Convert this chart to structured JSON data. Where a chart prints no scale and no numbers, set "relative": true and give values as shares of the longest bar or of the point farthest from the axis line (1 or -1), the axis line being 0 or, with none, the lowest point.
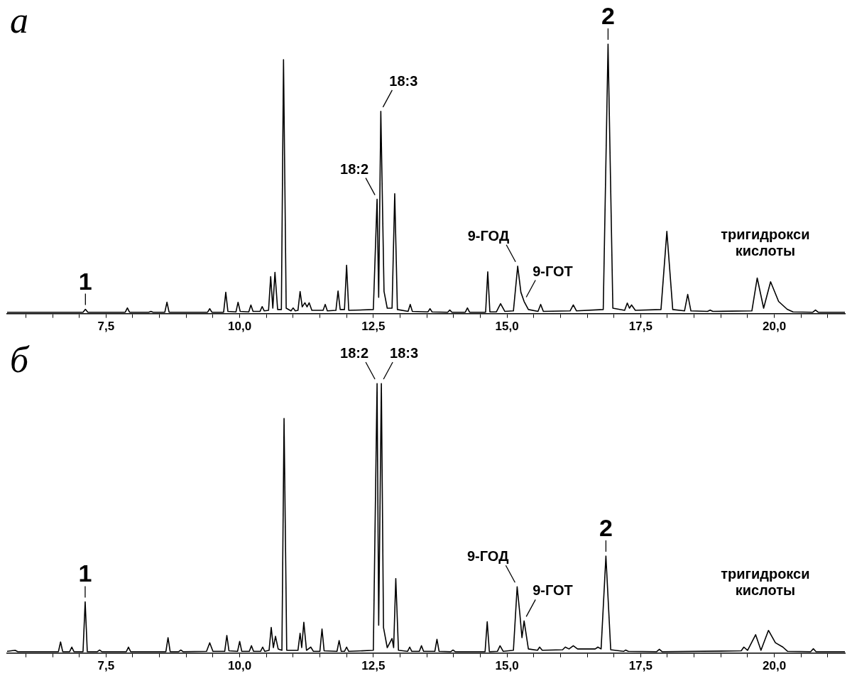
{
  "chart_data": [
    {
      "type": "line",
      "title": "а",
      "relative": true,
      "marker": "none",
      "tick_labels": "x",
      "xlim": [
        5.65,
        21.32
      ],
      "xticks": [
        {
          "value": 6,
          "label": null
        },
        {
          "value": 6.5,
          "label": null
        },
        {
          "value": 7,
          "label": null
        },
        {
          "value": 7.5,
          "label": "7,5"
        },
        {
          "value": 8,
          "label": null
        },
        {
          "value": 8.5,
          "label": null
        },
        {
          "value": 9,
          "label": null
        },
        {
          "value": 9.5,
          "label": null
        },
        {
          "value": 10,
          "label": "10,0"
        },
        {
          "value": 10.5,
          "label": null
        },
        {
          "value": 11,
          "label": null
        },
        {
          "value": 11.5,
          "label": null
        },
        {
          "value": 12,
          "label": null
        },
        {
          "value": 12.5,
          "label": "12,5"
        },
        {
          "value": 13,
          "label": null
        },
        {
          "value": 13.5,
          "label": null
        },
        {
          "value": 14,
          "label": null
        },
        {
          "value": 14.5,
          "label": null
        },
        {
          "value": 15,
          "label": "15,0"
        },
        {
          "value": 15.5,
          "label": null
        },
        {
          "value": 16,
          "label": null
        },
        {
          "value": 16.5,
          "label": null
        },
        {
          "value": 17,
          "label": null
        },
        {
          "value": 17.5,
          "label": "17,5"
        },
        {
          "value": 18,
          "label": null
        },
        {
          "value": 18.5,
          "label": null
        },
        {
          "value": 19,
          "label": null
        },
        {
          "value": 19.5,
          "label": null
        },
        {
          "value": 20,
          "label": "20,0"
        },
        {
          "value": 20.5,
          "label": null
        },
        {
          "value": 21,
          "label": null
        }
      ],
      "series": [
        {
          "color": "#000000",
          "x": [
            5.65,
            7.07,
            7.115,
            7.16,
            7.86,
            7.9,
            7.94,
            8.3,
            8.34,
            8.38,
            8.6,
            8.64,
            8.68,
            9.4,
            9.44,
            9.48,
            9.7,
            9.74,
            9.78,
            9.93,
            9.97,
            10.01,
            10.17,
            10.21,
            10.25,
            10.38,
            10.42,
            10.46,
            10.54,
            10.58,
            10.62,
            10.66,
            10.71,
            10.78,
            10.82,
            10.87,
            10.96,
            11.0,
            11.04,
            11.09,
            11.13,
            11.17,
            11.22,
            11.26,
            11.3,
            11.35,
            11.56,
            11.6,
            11.64,
            11.8,
            11.84,
            11.88,
            11.96,
            12.0,
            12.04,
            12.5,
            12.57,
            12.6,
            12.64,
            12.7,
            12.76,
            12.85,
            12.9,
            12.95,
            13.15,
            13.19,
            13.23,
            13.52,
            13.56,
            13.6,
            13.89,
            13.93,
            13.97,
            14.22,
            14.26,
            14.3,
            14.6,
            14.64,
            14.68,
            14.8,
            14.88,
            14.96,
            15.12,
            15.2,
            15.26,
            15.32,
            15.4,
            15.58,
            15.63,
            15.68,
            16.18,
            16.24,
            16.3,
            16.8,
            16.89,
            16.98,
            17.2,
            17.25,
            17.29,
            17.33,
            17.4,
            17.88,
            17.99,
            18.1,
            18.32,
            18.38,
            18.44,
            18.75,
            18.8,
            18.85,
            19.58,
            19.68,
            19.8,
            19.93,
            20.08,
            20.24,
            20.35,
            20.72,
            20.77,
            20.82,
            21.32
          ],
          "values": [
            0.005,
            0.005,
            0.016,
            0.005,
            0.005,
            0.021,
            0.005,
            0.005,
            0.008,
            0.005,
            0.005,
            0.042,
            0.005,
            0.005,
            0.018,
            0.005,
            0.005,
            0.079,
            0.008,
            0.006,
            0.042,
            0.008,
            0.006,
            0.032,
            0.008,
            0.008,
            0.026,
            0.01,
            0.012,
            0.137,
            0.02,
            0.153,
            0.015,
            0.015,
            0.942,
            0.02,
            0.01,
            0.021,
            0.01,
            0.012,
            0.082,
            0.025,
            0.04,
            0.025,
            0.04,
            0.012,
            0.012,
            0.034,
            0.01,
            0.012,
            0.084,
            0.015,
            0.015,
            0.179,
            0.012,
            0.015,
            0.424,
            0.06,
            0.75,
            0.082,
            0.02,
            0.02,
            0.445,
            0.015,
            0.008,
            0.034,
            0.008,
            0.006,
            0.018,
            0.006,
            0.005,
            0.013,
            0.005,
            0.005,
            0.021,
            0.005,
            0.005,
            0.155,
            0.006,
            0.006,
            0.037,
            0.008,
            0.01,
            0.176,
            0.079,
            0.045,
            0.015,
            0.008,
            0.034,
            0.008,
            0.01,
            0.032,
            0.01,
            0.015,
            1,
            0.02,
            0.012,
            0.039,
            0.02,
            0.032,
            0.012,
            0.015,
            0.305,
            0.015,
            0.01,
            0.071,
            0.01,
            0.008,
            0.013,
            0.008,
            0.01,
            0.132,
            0.02,
            0.118,
            0.045,
            0.016,
            0.006,
            0.005,
            0.013,
            0.005,
            0.005
          ]
        }
      ],
      "annotations": [
        {
          "text": "1",
          "x": 7.115,
          "y": 0.016
        },
        {
          "text": "18:2",
          "x": 12.57,
          "y": 0.424
        },
        {
          "text": "18:3",
          "x": 12.64,
          "y": 0.75
        },
        {
          "text": "9-ГОД",
          "x": 15.2,
          "y": 0.176
        },
        {
          "text": "9-ГОТ",
          "x": 15.32,
          "y": 0.045
        },
        {
          "text": "2",
          "x": 16.89,
          "y": 1
        },
        "тригидрокси кислоты"
      ]
    },
    {
      "type": "line",
      "title": "б",
      "relative": true,
      "marker": "none",
      "tick_labels": "x",
      "xlim": [
        5.65,
        21.32
      ],
      "xticks": [
        {
          "value": 6,
          "label": null
        },
        {
          "value": 6.5,
          "label": null
        },
        {
          "value": 7,
          "label": null
        },
        {
          "value": 7.5,
          "label": "7,5"
        },
        {
          "value": 8,
          "label": null
        },
        {
          "value": 8.5,
          "label": null
        },
        {
          "value": 9,
          "label": null
        },
        {
          "value": 9.5,
          "label": null
        },
        {
          "value": 10,
          "label": "10,0"
        },
        {
          "value": 10.5,
          "label": null
        },
        {
          "value": 11,
          "label": null
        },
        {
          "value": 11.5,
          "label": null
        },
        {
          "value": 12,
          "label": null
        },
        {
          "value": 12.5,
          "label": "12,5"
        },
        {
          "value": 13,
          "label": null
        },
        {
          "value": 13.5,
          "label": null
        },
        {
          "value": 14,
          "label": null
        },
        {
          "value": 14.5,
          "label": null
        },
        {
          "value": 15,
          "label": "15,0"
        },
        {
          "value": 15.5,
          "label": null
        },
        {
          "value": 16,
          "label": null
        },
        {
          "value": 16.5,
          "label": null
        },
        {
          "value": 17,
          "label": null
        },
        {
          "value": 17.5,
          "label": "17,5"
        },
        {
          "value": 18,
          "label": null
        },
        {
          "value": 18.5,
          "label": null
        },
        {
          "value": 19,
          "label": null
        },
        {
          "value": 19.5,
          "label": null
        },
        {
          "value": 20,
          "label": "20,0"
        },
        {
          "value": 20.5,
          "label": null
        },
        {
          "value": 21,
          "label": null
        }
      ],
      "series": [
        {
          "color": "#000000",
          "x": [
            5.65,
            5.8,
            5.85,
            6.61,
            6.65,
            6.69,
            6.82,
            6.86,
            6.9,
            7.07,
            7.11,
            7.15,
            7.34,
            7.38,
            7.42,
            7.88,
            7.92,
            7.96,
            8.62,
            8.66,
            8.7,
            8.86,
            8.9,
            8.94,
            9.38,
            9.44,
            9.5,
            9.72,
            9.76,
            9.8,
            9.96,
            10.0,
            10.04,
            10.18,
            10.22,
            10.26,
            10.39,
            10.43,
            10.47,
            10.55,
            10.59,
            10.63,
            10.67,
            10.72,
            10.79,
            10.83,
            10.88,
            11.09,
            11.13,
            11.16,
            11.2,
            11.25,
            11.33,
            11.38,
            11.5,
            11.54,
            11.58,
            11.82,
            11.86,
            11.9,
            11.96,
            12.0,
            12.04,
            12.5,
            12.57,
            12.6,
            12.65,
            12.69,
            12.76,
            12.85,
            12.88,
            12.92,
            12.97,
            13.14,
            13.18,
            13.22,
            13.36,
            13.4,
            13.44,
            13.65,
            13.69,
            13.73,
            13.95,
            13.99,
            14.03,
            14.59,
            14.63,
            14.67,
            14.82,
            14.87,
            14.93,
            15.12,
            15.19,
            15.24,
            15.28,
            15.32,
            15.4,
            15.57,
            15.61,
            15.66,
            16.04,
            16.09,
            16.16,
            16.24,
            16.32,
            16.65,
            16.7,
            16.76,
            16.85,
            16.94,
            17.18,
            17.22,
            17.27,
            17.8,
            17.85,
            17.9,
            19.38,
            19.43,
            19.5,
            19.65,
            19.75,
            19.89,
            20.02,
            20.16,
            20.25,
            20.68,
            20.73,
            20.78,
            21.32
          ],
          "values": [
            0.006,
            0.01,
            0.005,
            0.005,
            0.041,
            0.005,
            0.005,
            0.022,
            0.005,
            0.005,
            0.19,
            0.005,
            0.005,
            0.011,
            0.005,
            0.005,
            0.022,
            0.005,
            0.005,
            0.057,
            0.005,
            0.005,
            0.011,
            0.005,
            0.006,
            0.038,
            0.006,
            0.006,
            0.065,
            0.008,
            0.006,
            0.043,
            0.006,
            0.006,
            0.027,
            0.006,
            0.006,
            0.022,
            0.006,
            0.01,
            0.095,
            0.02,
            0.062,
            0.015,
            0.01,
            0.87,
            0.01,
            0.01,
            0.073,
            0.02,
            0.114,
            0.01,
            0.022,
            0.006,
            0.006,
            0.089,
            0.008,
            0.006,
            0.046,
            0.006,
            0.006,
            0.022,
            0.006,
            0.01,
            1,
            0.103,
            1,
            0.095,
            0.02,
            0.054,
            0.02,
            0.276,
            0.01,
            0.006,
            0.022,
            0.006,
            0.006,
            0.027,
            0.006,
            0.006,
            0.051,
            0.006,
            0.005,
            0.011,
            0.005,
            0.005,
            0.116,
            0.005,
            0.006,
            0.027,
            0.006,
            0.01,
            0.246,
            0.146,
            0.057,
            0.119,
            0.015,
            0.01,
            0.022,
            0.01,
            0.012,
            0.022,
            0.015,
            0.027,
            0.015,
            0.015,
            0.022,
            0.015,
            0.36,
            0.012,
            0.006,
            0.011,
            0.006,
            0.005,
            0.014,
            0.005,
            0.008,
            0.022,
            0.01,
            0.068,
            0.01,
            0.084,
            0.038,
            0.022,
            0.006,
            0.005,
            0.016,
            0.005,
            0.005
          ]
        }
      ],
      "annotations": [
        {
          "text": "1",
          "x": 7.11,
          "y": 0.19
        },
        {
          "text": "18:2",
          "x": 12.57,
          "y": 1
        },
        {
          "text": "18:3",
          "x": 12.65,
          "y": 1
        },
        {
          "text": "9-ГОД",
          "x": 15.19,
          "y": 0.246
        },
        {
          "text": "9-ГОТ",
          "x": 15.32,
          "y": 0.119
        },
        {
          "text": "2",
          "x": 16.85,
          "y": 0.36
        },
        "тригидрокси кислоты"
      ]
    }
  ]
}
